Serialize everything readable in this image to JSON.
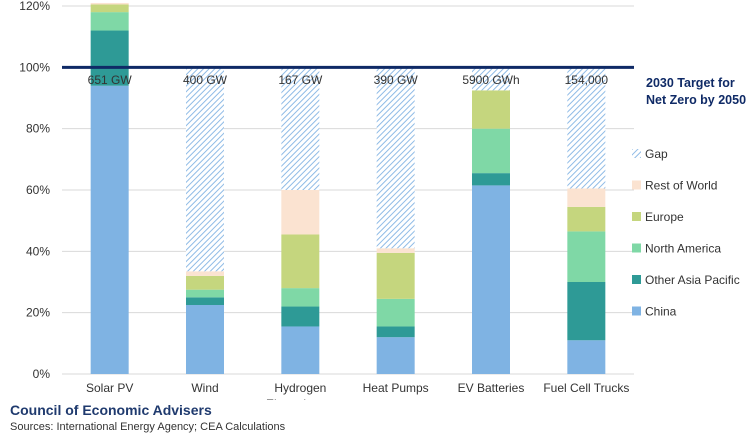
{
  "chart_data": {
    "type": "bar",
    "stacked": true,
    "categories": [
      "Solar PV",
      "Wind",
      "Hydrogen Electrolyzers",
      "Heat Pumps",
      "EV Batteries",
      "Fuel Cell Trucks"
    ],
    "category_labels": [
      [
        "Solar PV"
      ],
      [
        "Wind"
      ],
      [
        "Hydrogen",
        "Electrolyzers"
      ],
      [
        "Heat Pumps"
      ],
      [
        "EV Batteries"
      ],
      [
        "Fuel Cell Trucks"
      ]
    ],
    "targets": [
      "651 GW",
      "400 GW",
      "167 GW",
      "390 GW",
      "5900 GWh",
      "154,000"
    ],
    "series": [
      {
        "name": "China",
        "color": "#7fb3e3",
        "values": [
          94,
          22.5,
          15.5,
          12,
          61.5,
          11
        ]
      },
      {
        "name": "Other Asia Pacific",
        "color": "#2e9a96",
        "values": [
          18,
          2.5,
          6.5,
          3.5,
          4,
          19
        ]
      },
      {
        "name": "North America",
        "color": "#7fd8a6",
        "values": [
          6,
          2.5,
          6,
          9,
          14.5,
          16.5
        ]
      },
      {
        "name": "Europe",
        "color": "#c5d67e",
        "values": [
          2.5,
          4.5,
          17.5,
          15,
          12.5,
          8
        ]
      },
      {
        "name": "Rest of World",
        "color": "#fbe3d1",
        "values": [
          0.5,
          1.5,
          14.5,
          1.5,
          0,
          6
        ]
      },
      {
        "name": "Gap",
        "color": "#9ec4e8",
        "pattern": "hatch",
        "values": [
          0,
          66.5,
          40,
          59,
          7.5,
          39.5
        ]
      }
    ],
    "yticks": [
      0,
      20,
      40,
      60,
      80,
      100,
      120
    ],
    "ytick_labels": [
      "0%",
      "20%",
      "40%",
      "60%",
      "80%",
      "100%",
      "120%"
    ],
    "ylim": [
      0,
      120
    ],
    "target_line": {
      "value": 100,
      "label_lines": [
        "2030 Target for",
        "Net Zero by 2050"
      ],
      "color": "#0f2a66"
    },
    "grid": true,
    "legend_position": "right",
    "legend_order": [
      "Gap",
      "Rest of World",
      "Europe",
      "North America",
      "Other Asia Pacific",
      "China"
    ]
  },
  "footer": {
    "title": "Council of Economic Advisers",
    "source": "Sources: International Energy Agency; CEA Calculations"
  }
}
